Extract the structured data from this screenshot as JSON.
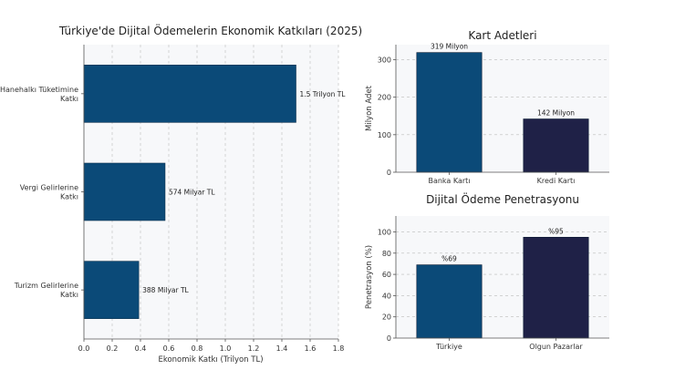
{
  "colors": {
    "primary": "#0b4a78",
    "secondary": "#1f2147",
    "grid": "#bbbbbb",
    "plot_bg": "#f7f8fa"
  },
  "chart_data": [
    {
      "type": "bar",
      "orientation": "horizontal",
      "title": "Türkiye'de Dijital Ödemelerin Ekonomik Katkıları (2025)",
      "categories": [
        "Hanehalkı Tüketimine\nKatkı",
        "Vergi Gelirlerine\nKatkı",
        "Turizm Gelirlerine\nKatkı"
      ],
      "values": [
        1.5,
        0.574,
        0.388
      ],
      "data_labels": [
        "1.5 Trilyon TL",
        "574 Milyar TL",
        "388 Milyar TL"
      ],
      "xlabel": "Ekonomik Katkı (Trilyon TL)",
      "ylabel": "",
      "xlim": [
        0,
        1.8
      ],
      "xticks": [
        0.0,
        0.2,
        0.4,
        0.6,
        0.8,
        1.0,
        1.2,
        1.4,
        1.6,
        1.8
      ],
      "xtick_labels": [
        "0.0",
        "0.2",
        "0.4",
        "0.6",
        "0.8",
        "1.0",
        "1.2",
        "1.4",
        "1.6",
        "1.8"
      ],
      "grid": "vertical dashed",
      "bar_colors": [
        "#0b4a78",
        "#0b4a78",
        "#0b4a78"
      ]
    },
    {
      "type": "bar",
      "title": "Kart Adetleri",
      "categories": [
        "Banka Kartı",
        "Kredi Kartı"
      ],
      "values": [
        319,
        142
      ],
      "data_labels": [
        "319 Milyon",
        "142 Milyon"
      ],
      "xlabel": "",
      "ylabel": "Milyon Adet",
      "ylim": [
        0,
        340
      ],
      "yticks": [
        0,
        100,
        200,
        300
      ],
      "grid": "horizontal dashed",
      "bar_colors": [
        "#0b4a78",
        "#1f2147"
      ]
    },
    {
      "type": "bar",
      "title": "Dijital Ödeme Penetrasyonu",
      "categories": [
        "Türkiye",
        "Olgun Pazarlar"
      ],
      "values": [
        69,
        95
      ],
      "data_labels": [
        "%69",
        "%95"
      ],
      "xlabel": "",
      "ylabel": "Penetrasyon (%)",
      "ylim": [
        0,
        115
      ],
      "yticks": [
        0,
        20,
        40,
        60,
        80,
        100
      ],
      "grid": "horizontal dashed",
      "bar_colors": [
        "#0b4a78",
        "#1f2147"
      ]
    }
  ]
}
